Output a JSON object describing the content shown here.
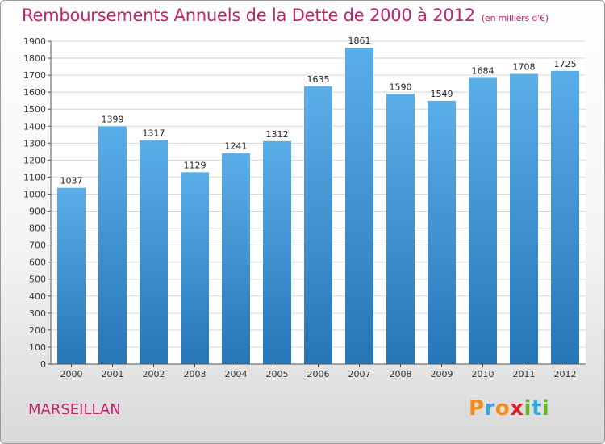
{
  "header": {
    "title": "Remboursements Annuels de la Dette de 2000 à 2012",
    "subtitle": "(en milliers d'€)"
  },
  "footer": {
    "place": "MARSEILLAN",
    "brand": "Proxiti",
    "brand_colors": [
      "#f28c1c",
      "#3aa7dc",
      "#f28c1c",
      "#d8232a",
      "#6ab72e",
      "#3aa7dc",
      "#6ab72e"
    ]
  },
  "colors": {
    "bar_top": "#5aaee8",
    "bar_bottom": "#2676b8",
    "title": "#c0246a",
    "grid": "#d7d7d7"
  },
  "chart_data": {
    "type": "bar",
    "title": "Remboursements Annuels de la Dette de 2000 à 2012",
    "subtitle": "(en milliers d'€)",
    "categories": [
      "2000",
      "2001",
      "2002",
      "2003",
      "2004",
      "2005",
      "2006",
      "2007",
      "2008",
      "2009",
      "2010",
      "2011",
      "2012"
    ],
    "values": [
      1037,
      1399,
      1317,
      1129,
      1241,
      1312,
      1635,
      1861,
      1590,
      1549,
      1684,
      1708,
      1725
    ],
    "ylim": [
      0,
      1900
    ],
    "ytick_step": 100,
    "grid": true,
    "xlabel": "",
    "ylabel": ""
  }
}
